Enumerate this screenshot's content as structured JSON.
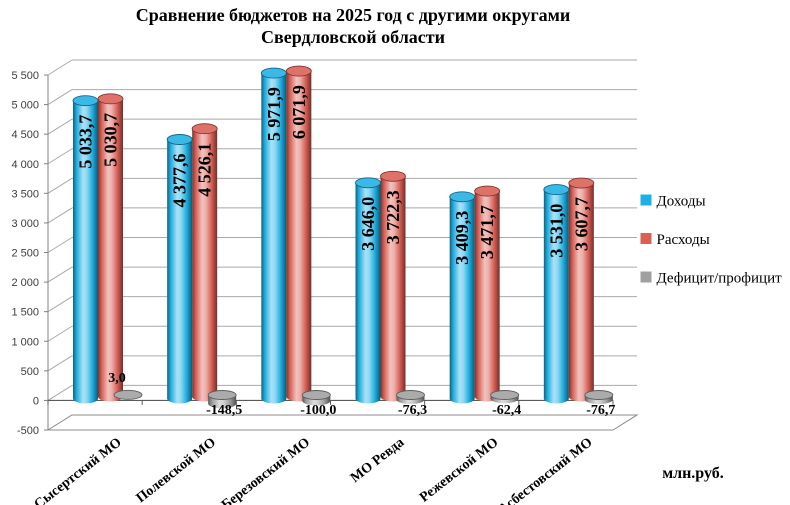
{
  "title": {
    "line1": "Сравнение бюджетов на 2025 год с другими округами",
    "line2": "Свердловской области"
  },
  "chart_data": {
    "type": "bar",
    "style": "3d-cylinder",
    "title": "Сравнение бюджетов на 2025 год с другими округами Свердловской области",
    "unit_label": "млн.руб.",
    "categories": [
      "Сысертский МО",
      "Полевской МО",
      "Березовский МО",
      "МО Ревда",
      "Режевской МО",
      "Асбестовский МО"
    ],
    "series": [
      {
        "name": "Доходы",
        "color": "#1fb0e4",
        "values": [
          5033.7,
          4377.6,
          5971.9,
          3646.0,
          3409.3,
          3531.0
        ],
        "labels": [
          "5 033,7",
          "4 377,6",
          "5 971,9",
          "3 646,0",
          "3 409,3",
          "3 531,0"
        ]
      },
      {
        "name": "Расходы",
        "color": "#da5f55",
        "values": [
          5030.7,
          4526.1,
          6071.9,
          3722.3,
          3471.7,
          3607.7
        ],
        "labels": [
          "5 030,7",
          "4 526,1",
          "6 071,9",
          "3 722,3",
          "3 471,7",
          "3 607,7"
        ]
      },
      {
        "name": "Дефицит/профицит",
        "color": "#a0a0a0",
        "values": [
          3.0,
          -148.5,
          -100.0,
          -76.3,
          -62.4,
          -76.7
        ],
        "labels": [
          "3,0",
          "-148,5",
          "-100,0",
          "-76,3",
          "-62,4",
          "-76,7"
        ]
      }
    ],
    "y_axis": {
      "min": -500,
      "max": 5500,
      "step": 500,
      "tick_labels": [
        "-500",
        "0",
        "500",
        "1 000",
        "1 500",
        "2 000",
        "2 500",
        "3 000",
        "3 500",
        "4 000",
        "4 500",
        "5 000",
        "5 500"
      ]
    },
    "ylim": [
      -500,
      5500
    ],
    "grid": true,
    "legend_position": "right"
  }
}
